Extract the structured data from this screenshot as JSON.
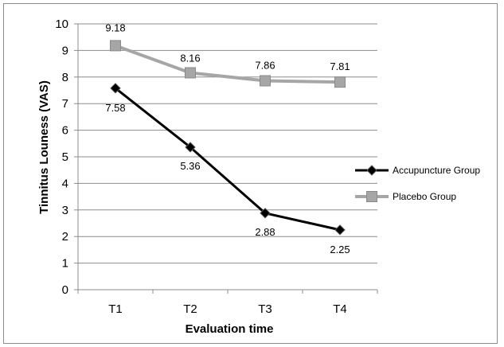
{
  "chart_data": {
    "type": "line",
    "categories": [
      "T1",
      "T2",
      "T3",
      "T4"
    ],
    "series": [
      {
        "name": "Accupuncture Group",
        "values": [
          7.58,
          5.36,
          2.88,
          2.25
        ],
        "labels": [
          "7.58",
          "5.36",
          "2.88",
          "2.25"
        ],
        "color": "#000000",
        "marker": "diamond"
      },
      {
        "name": "Placebo Group",
        "values": [
          9.18,
          8.16,
          7.86,
          7.81
        ],
        "labels": [
          "9.18",
          "8.16",
          "7.86",
          "7.81"
        ],
        "color": "#a6a6a6",
        "marker": "square"
      }
    ],
    "xlabel": "Evaluation time",
    "ylabel": "Tinnitus Louness  (VAS)",
    "ylim": [
      0,
      10
    ],
    "yticks": [
      "0",
      "1",
      "2",
      "3",
      "4",
      "5",
      "6",
      "7",
      "8",
      "9",
      "10"
    ],
    "grid": true,
    "legend_position": "right"
  }
}
